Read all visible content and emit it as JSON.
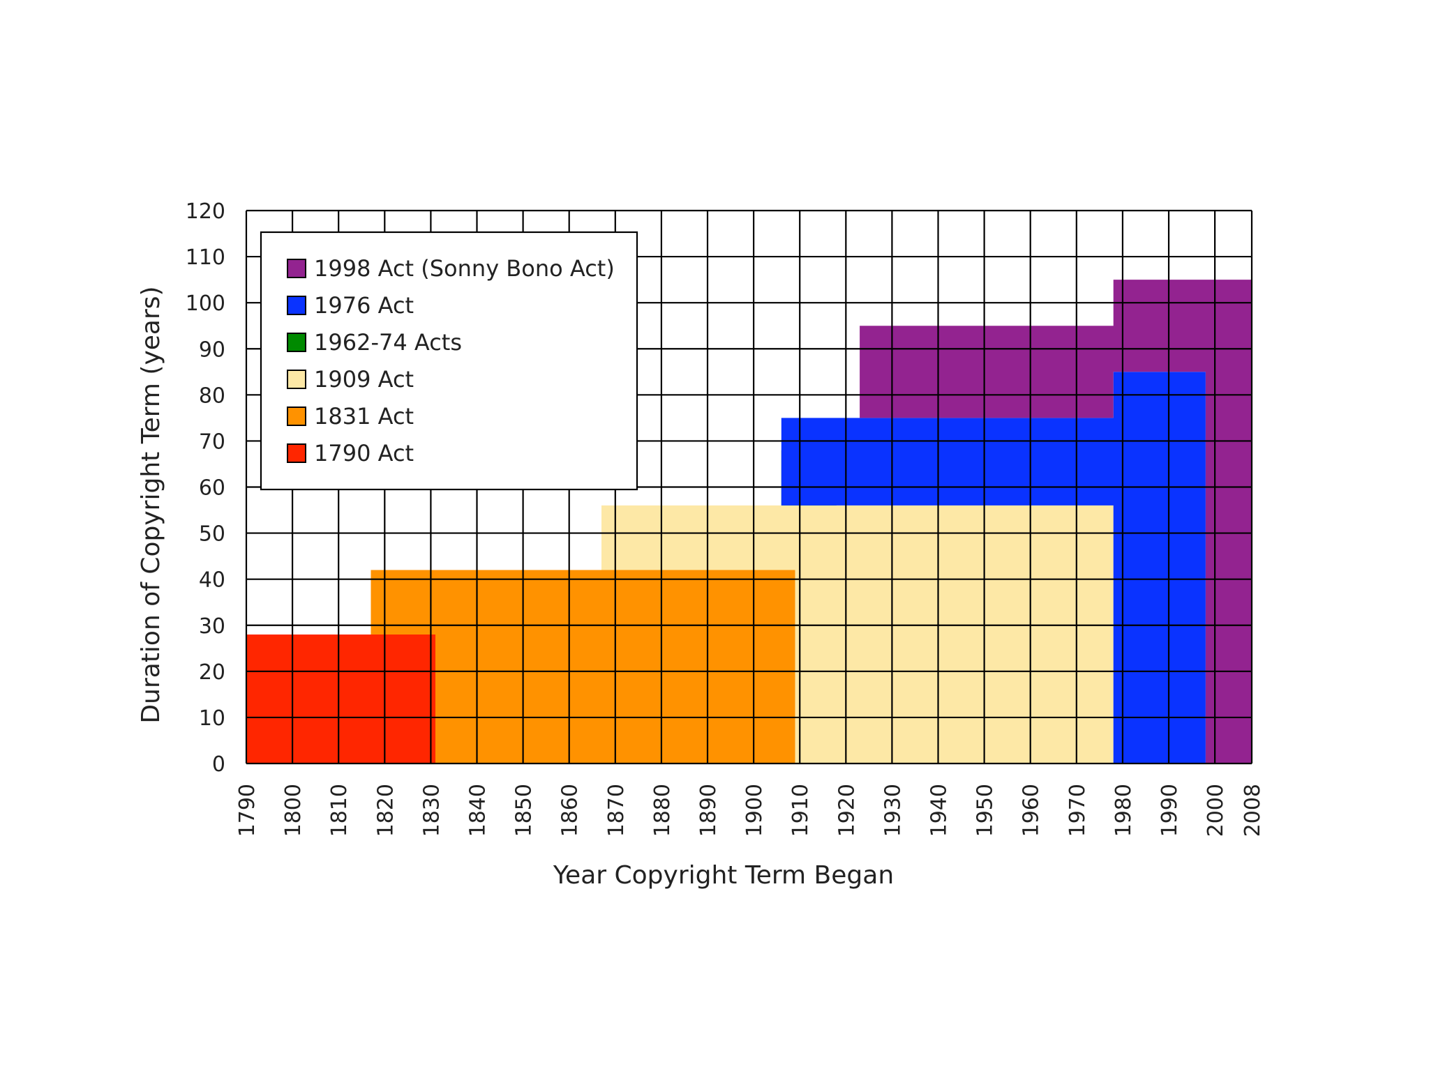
{
  "chart_data": {
    "type": "area",
    "xlabel": "Year Copyright Term Began",
    "ylabel": "Duration of Copyright Term (years)",
    "xlim": [
      1790,
      2008
    ],
    "ylim": [
      0,
      120
    ],
    "x_ticks": [
      1790,
      1800,
      1810,
      1820,
      1830,
      1840,
      1850,
      1860,
      1870,
      1880,
      1890,
      1900,
      1910,
      1920,
      1930,
      1940,
      1950,
      1960,
      1970,
      1980,
      1990,
      2000,
      2008
    ],
    "y_ticks": [
      0,
      10,
      20,
      30,
      40,
      50,
      60,
      70,
      80,
      90,
      100,
      110,
      120
    ],
    "grid": true,
    "legend_position": "top-left",
    "series": [
      {
        "name": "1998 Act (Sonny Bono Act)",
        "color": "#932390",
        "points": [
          [
            1923,
            75
          ],
          [
            1923,
            95
          ],
          [
            1978,
            95
          ],
          [
            1978,
            105
          ],
          [
            2008,
            105
          ],
          [
            2008,
            0
          ],
          [
            1998,
            0
          ],
          [
            1998,
            85
          ],
          [
            1978,
            85
          ],
          [
            1978,
            75
          ]
        ]
      },
      {
        "name": "1976 Act",
        "color": "#0a33ff",
        "points": [
          [
            1906,
            56
          ],
          [
            1906,
            75
          ],
          [
            1978,
            75
          ],
          [
            1978,
            85
          ],
          [
            1998,
            85
          ],
          [
            1998,
            0
          ],
          [
            1978,
            0
          ],
          [
            1978,
            56
          ]
        ]
      },
      {
        "name": "1962-74 Acts",
        "color": "#008a00",
        "points": [
          [
            1906,
            56
          ],
          [
            1906,
            68
          ],
          [
            1918,
            56
          ]
        ]
      },
      {
        "name": "1909 Act",
        "color": "#fde8a6",
        "points": [
          [
            1909,
            0
          ],
          [
            1909,
            42
          ],
          [
            1867,
            42
          ],
          [
            1867,
            56
          ],
          [
            1978,
            56
          ],
          [
            1978,
            0
          ]
        ]
      },
      {
        "name": "1831 Act",
        "color": "#ff9200",
        "points": [
          [
            1831,
            0
          ],
          [
            1831,
            28
          ],
          [
            1817,
            28
          ],
          [
            1817,
            42
          ],
          [
            1909,
            42
          ],
          [
            1909,
            0
          ]
        ]
      },
      {
        "name": "1790 Act",
        "color": "#ff2600",
        "points": [
          [
            1790,
            0
          ],
          [
            1790,
            28
          ],
          [
            1831,
            28
          ],
          [
            1831,
            0
          ]
        ]
      }
    ]
  }
}
